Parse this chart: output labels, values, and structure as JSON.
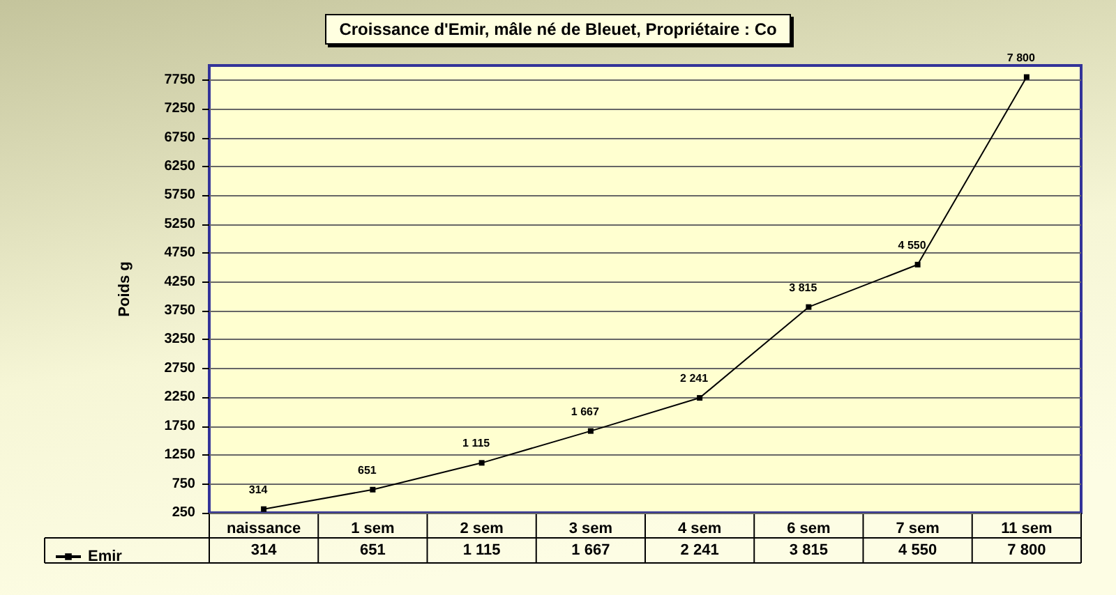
{
  "chart_data": {
    "type": "line",
    "title": "Croissance d'Emir, mâle né de Bleuet, Propriétaire : Co",
    "ylabel": "Poids g",
    "categories": [
      "naissance",
      "1 sem",
      "2 sem",
      "3 sem",
      "4 sem",
      "6 sem",
      "7 sem",
      "11 sem"
    ],
    "series": [
      {
        "name": "Emir",
        "color": "#000000",
        "values": [
          314,
          651,
          1115,
          1667,
          2241,
          3815,
          4550,
          7800
        ],
        "value_labels": [
          "314",
          "651",
          "1 115",
          "1 667",
          "2 241",
          "3 815",
          "4 550",
          "7 800"
        ]
      }
    ],
    "ylim": [
      250,
      8000
    ],
    "yticks": [
      250,
      750,
      1250,
      1750,
      2250,
      2750,
      3250,
      3750,
      4250,
      4750,
      5250,
      5750,
      6250,
      6750,
      7250,
      7750
    ],
    "grid": "y",
    "legend": "bottom left",
    "marker": "square",
    "line_style": "solid"
  }
}
